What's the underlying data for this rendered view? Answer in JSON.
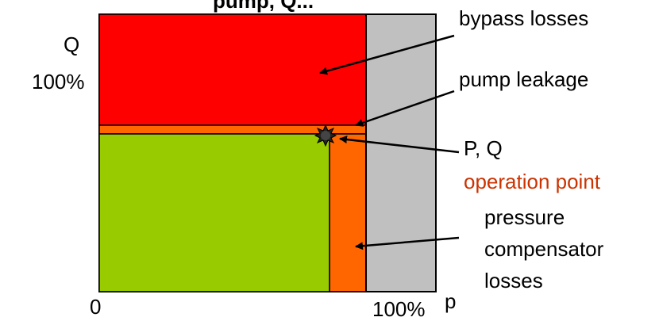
{
  "title_fragment": "pump, Q...",
  "axes": {
    "y_label": "Q",
    "y_max_label": "100%",
    "origin_label": "0",
    "x_max_label": "100%",
    "x_label": "p"
  },
  "annotations": {
    "bypass_losses": "bypass losses",
    "pump_leakage": "pump leakage",
    "pq": "P, Q",
    "operation_point": "operation point",
    "pressure_comp_line1": "pressure",
    "pressure_comp_line2": "compensator",
    "pressure_comp_line3": "losses"
  },
  "colors": {
    "bypass_region": "#ff0000",
    "leakage_region": "#ff6600",
    "useful_region": "#99cc00",
    "compensator_region": "#ff6600",
    "outer_region": "#c0c0c0",
    "operation_point_label": "#cc3300"
  }
}
